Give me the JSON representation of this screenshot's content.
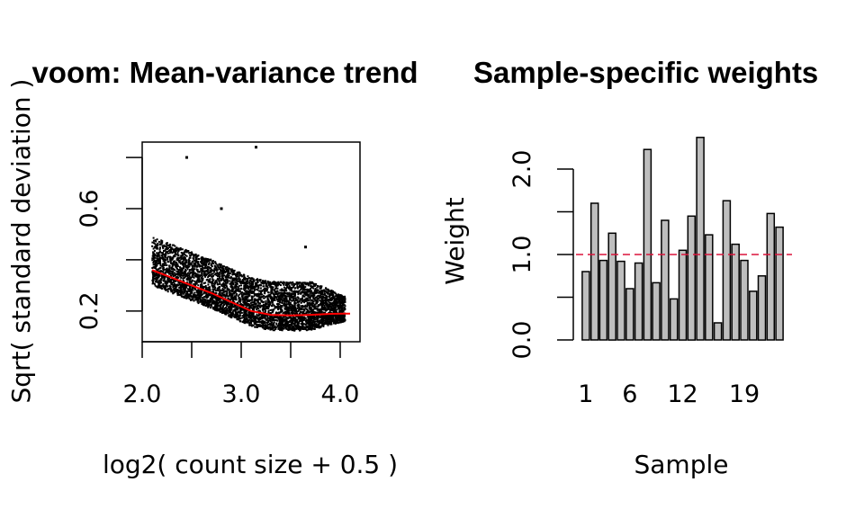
{
  "chart_data": [
    {
      "type": "scatter",
      "title": "voom: Mean-variance trend",
      "xlabel": "log2( count size + 0.5 )",
      "ylabel": "Sqrt( standard deviation )",
      "xlim": [
        2.0,
        4.2
      ],
      "ylim": [
        0.08,
        0.86
      ],
      "x_ticks": [
        "2.0",
        "3.0",
        "4.0"
      ],
      "x_tick_values": [
        2.0,
        2.5,
        3.0,
        3.5,
        4.0
      ],
      "y_ticks": [
        "0.2",
        "0.6"
      ],
      "y_tick_values": [
        0.2,
        0.4,
        0.6,
        0.8
      ],
      "point_color": "#000000",
      "trend": {
        "name": "lowess trend",
        "color": "#ff0000",
        "x": [
          2.1,
          2.3,
          2.5,
          2.7,
          2.9,
          3.1,
          3.3,
          3.5,
          3.7,
          3.9,
          4.1
        ],
        "y": [
          0.36,
          0.33,
          0.3,
          0.27,
          0.235,
          0.2,
          0.185,
          0.183,
          0.185,
          0.189,
          0.19
        ]
      },
      "outliers": [
        {
          "x": 2.45,
          "y": 0.8
        },
        {
          "x": 3.15,
          "y": 0.84
        },
        {
          "x": 3.65,
          "y": 0.45
        },
        {
          "x": 2.8,
          "y": 0.6
        }
      ],
      "point_cloud": {
        "x_range": [
          2.1,
          4.05
        ],
        "spread_above_trend": 0.13,
        "spread_below_trend": 0.06
      }
    },
    {
      "type": "bar",
      "title": "Sample-specific weights",
      "xlabel": "Sample",
      "ylabel": "Weight",
      "ylim": [
        0.0,
        2.4
      ],
      "x_ticks": [
        "1",
        "6",
        "12",
        "19"
      ],
      "x_tick_positions": [
        1,
        6,
        12,
        19
      ],
      "y_ticks": [
        "0.0",
        "1.0",
        "2.0"
      ],
      "y_tick_values": [
        0.0,
        0.5,
        1.0,
        1.5,
        2.0
      ],
      "bar_color": "#bebebe",
      "reference_line": {
        "y": 1.0,
        "color": "#dc143c",
        "style": "dashed"
      },
      "values": [
        0.8,
        1.6,
        0.93,
        1.25,
        0.92,
        0.6,
        0.9,
        2.23,
        0.67,
        1.4,
        0.48,
        1.05,
        1.45,
        2.37,
        1.23,
        0.2,
        1.63,
        1.12,
        0.93,
        0.57,
        0.75,
        1.48,
        1.32
      ]
    }
  ]
}
